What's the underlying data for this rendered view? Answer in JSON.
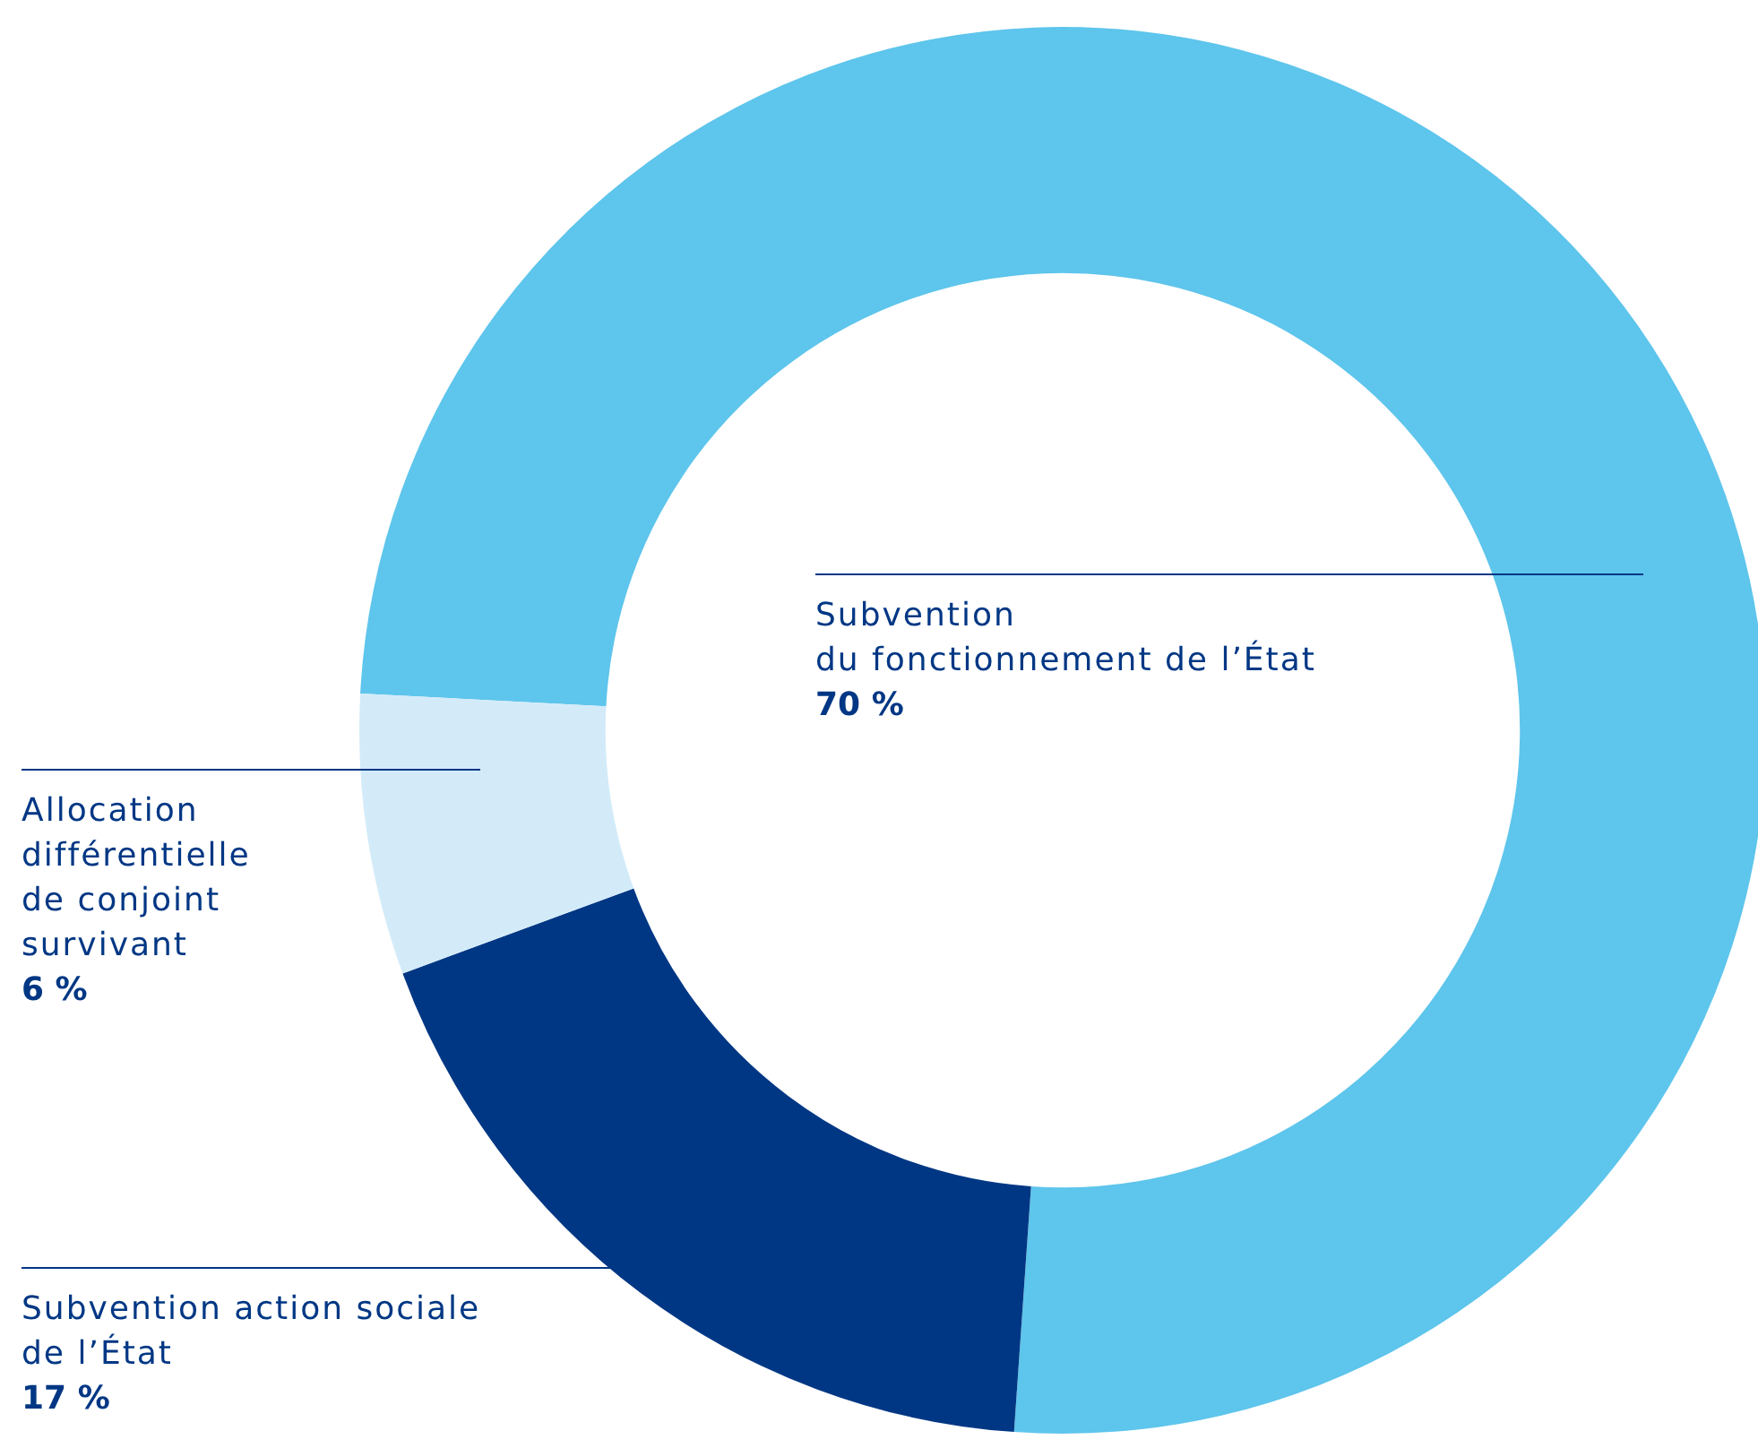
{
  "chart_data": {
    "type": "donut",
    "categories": [
      "Subvention\ndu fonctionnement de l’État",
      "Subvention action sociale\nde l’État",
      "Allocation\ndifférentielle\nde conjoint\nsurvivant"
    ],
    "values": [
      70,
      17,
      6
    ],
    "colors": [
      "#5ec5ec",
      "#003784",
      "#d3ebf9"
    ],
    "value_labels": [
      "70 %",
      "17 %",
      "6 %"
    ],
    "legend": false
  }
}
